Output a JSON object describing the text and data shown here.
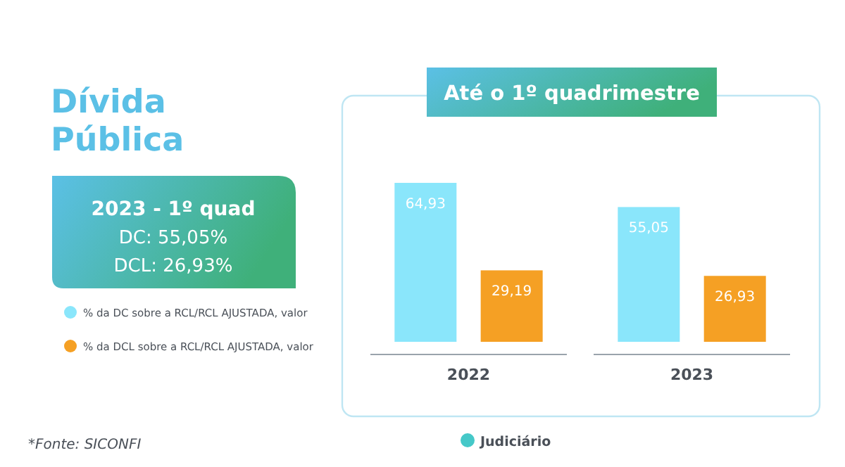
{
  "chart_data": {
    "type": "bar",
    "title": "Dívida Pública",
    "subtitle": "Até o 1º quadrimestre",
    "categories": [
      "2022",
      "2023"
    ],
    "series": [
      {
        "name": "% da DC sobre a RCL/RCL AJUSTADA, valor",
        "color": "#8ae6fb",
        "values": [
          64.93,
          55.05
        ],
        "value_labels": [
          "64,93",
          "55,05"
        ]
      },
      {
        "name": "% da DCL sobre a RCL/RCL AJUSTADA, valor",
        "color": "#f5a024",
        "values": [
          29.19,
          26.93
        ],
        "value_labels": [
          "29,19",
          "26,93"
        ]
      }
    ],
    "data_labels": true,
    "legend": "left",
    "annotations": [
      "2023 - 1º quad",
      "DC: 55,05%",
      "DCL: 26,93%",
      "*Fonte: SICONFI",
      "Judiciário"
    ]
  }
}
